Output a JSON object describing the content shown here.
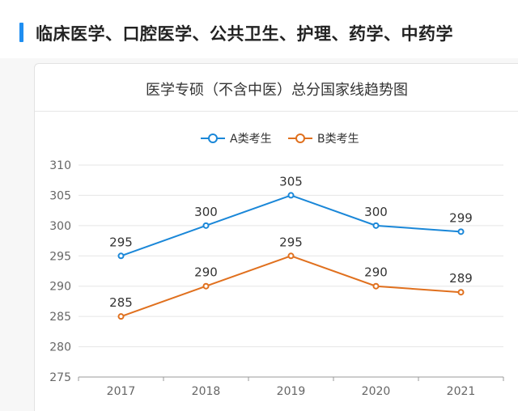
{
  "page": {
    "heading": "临床医学、口腔医学、公共卫生、护理、药学、中药学"
  },
  "chart_data": {
    "type": "line",
    "title": "医学专硕（不含中医）总分国家线趋势图",
    "categories": [
      "2017",
      "2018",
      "2019",
      "2020",
      "2021"
    ],
    "series": [
      {
        "name": "A类考生",
        "values": [
          295,
          300,
          305,
          300,
          299
        ],
        "color": "#1a87d8"
      },
      {
        "name": "B类考生",
        "values": [
          285,
          290,
          295,
          290,
          289
        ],
        "color": "#e0701e"
      }
    ],
    "ylim": [
      275,
      310
    ],
    "yticks": [
      275,
      280,
      285,
      290,
      295,
      300,
      305,
      310
    ],
    "grid": true,
    "legend": "top",
    "data_labels": true
  },
  "colors": {
    "accent_bar": "#1f8ef1",
    "grid": "#e5e5e5",
    "axis": "#999999"
  }
}
